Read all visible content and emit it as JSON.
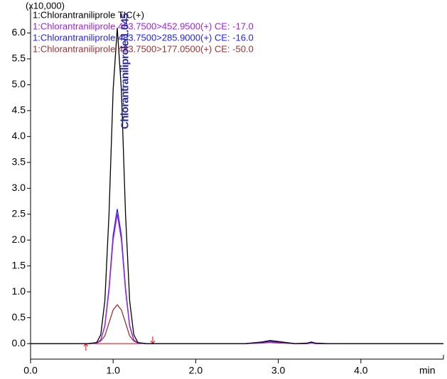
{
  "chart_data": {
    "type": "line",
    "y_unit_label": "(x10,000)",
    "x_label": "min",
    "annotation": "Chlorantraniliprole/1.045",
    "annotation_color": "#2a2aa0",
    "x": [
      0,
      0.5,
      0.7,
      0.8,
      0.85,
      0.9,
      0.95,
      1.0,
      1.05,
      1.1,
      1.15,
      1.2,
      1.25,
      1.3,
      1.4,
      1.5,
      2.0,
      2.6,
      2.8,
      2.9,
      3.0,
      3.2,
      3.35,
      3.4,
      3.45,
      3.6,
      4.0,
      5.0
    ],
    "series": [
      {
        "name": "1:Chlorantraniliprole TIC(+)",
        "color": "#000000",
        "values": [
          0,
          0,
          0,
          0.02,
          0.17,
          0.83,
          2.5,
          4.9,
          6.1,
          4.9,
          2.5,
          0.83,
          0.17,
          0.02,
          0,
          0,
          0,
          0,
          0.03,
          0.06,
          0.04,
          0,
          0.01,
          0.03,
          0.01,
          0,
          0,
          0
        ]
      },
      {
        "name": "1:Chlorantraniliprole 483.7500>452.9500(+) CE: -17.0",
        "color": "#a020e0",
        "values": [
          0,
          0,
          0,
          0.01,
          0.07,
          0.34,
          1.02,
          2.0,
          2.5,
          2.0,
          1.02,
          0.34,
          0.07,
          0.01,
          0,
          0,
          0,
          0,
          0.01,
          0.03,
          0.02,
          0,
          0,
          0.01,
          0,
          0,
          0,
          0
        ]
      },
      {
        "name": "1:Chlorantraniliprole 483.7500>285.9000(+) CE: -16.0",
        "color": "#2020f0",
        "values": [
          0,
          0,
          0,
          0.01,
          0.07,
          0.35,
          1.07,
          2.09,
          2.6,
          2.09,
          1.07,
          0.35,
          0.07,
          0.01,
          0,
          0,
          0,
          0,
          0.02,
          0.05,
          0.03,
          0,
          0,
          0.02,
          0,
          0,
          0,
          0
        ]
      },
      {
        "name": "1:Chlorantraniliprole 483.7500>177.0500(+) CE: -50.0",
        "color": "#a03030",
        "values": [
          0,
          0,
          0,
          0.01,
          0.05,
          0.15,
          0.4,
          0.65,
          0.75,
          0.65,
          0.4,
          0.15,
          0.05,
          0.01,
          0,
          0,
          0,
          0,
          0.01,
          0.02,
          0.01,
          0,
          0,
          0.01,
          0,
          0,
          0,
          0
        ]
      }
    ],
    "peak_window": [
      0.67,
      1.48
    ],
    "peak_window_color": "#e00000",
    "xlim": [
      0,
      5
    ],
    "xticks": [
      {
        "value": 0,
        "label": "0.0"
      },
      {
        "value": 1,
        "label": "1.0"
      },
      {
        "value": 2,
        "label": "2.0"
      },
      {
        "value": 3,
        "label": "3.0"
      },
      {
        "value": 4,
        "label": "4.0"
      }
    ],
    "ylim": [
      -0.3,
      6.5
    ],
    "yticks": [
      {
        "value": 0,
        "label": "0.0"
      },
      {
        "value": 0.5,
        "label": "0.5"
      },
      {
        "value": 1,
        "label": "1.0"
      },
      {
        "value": 1.5,
        "label": "1.5"
      },
      {
        "value": 2,
        "label": "2.0"
      },
      {
        "value": 2.5,
        "label": "2.5"
      },
      {
        "value": 3,
        "label": "3.0"
      },
      {
        "value": 3.5,
        "label": "3.5"
      },
      {
        "value": 4,
        "label": "4.0"
      },
      {
        "value": 4.5,
        "label": "4.5"
      },
      {
        "value": 5,
        "label": "5.0"
      },
      {
        "value": 5.5,
        "label": "5.5"
      },
      {
        "value": 6,
        "label": "6.0"
      }
    ]
  }
}
